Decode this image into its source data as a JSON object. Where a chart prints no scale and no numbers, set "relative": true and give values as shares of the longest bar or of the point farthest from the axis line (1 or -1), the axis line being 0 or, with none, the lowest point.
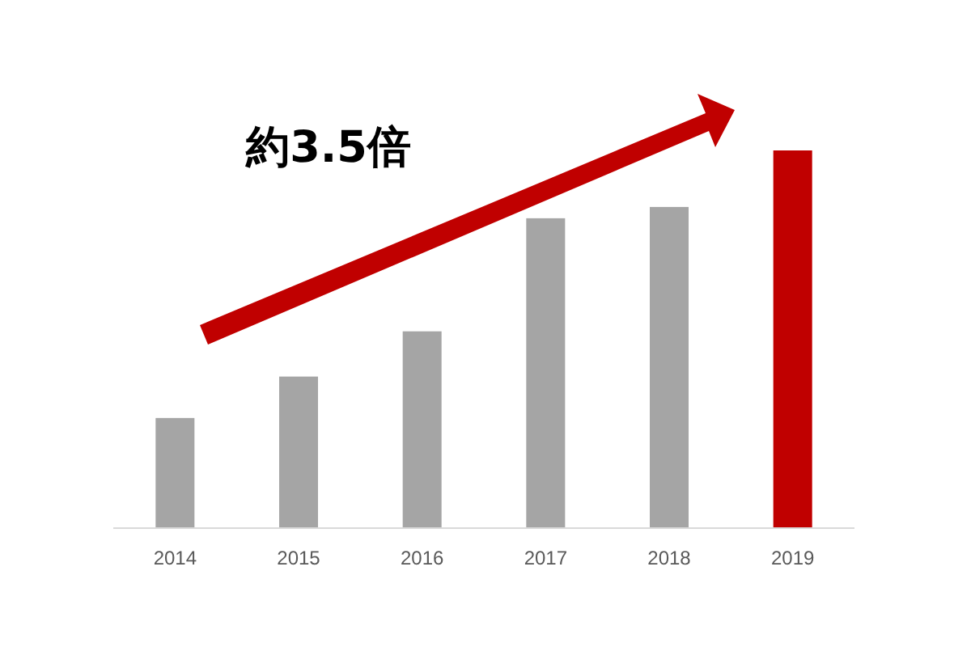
{
  "chart_data": {
    "type": "bar",
    "relative": true,
    "categories": [
      "2014",
      "2015",
      "2016",
      "2017",
      "2018",
      "2019"
    ],
    "values": [
      0.29,
      0.4,
      0.52,
      0.82,
      0.85,
      1
    ],
    "colors": [
      "#a5a5a5",
      "#a5a5a5",
      "#a5a5a5",
      "#a5a5a5",
      "#a5a5a5",
      "#c00000"
    ],
    "annotations": [
      "約3.5倍"
    ]
  }
}
